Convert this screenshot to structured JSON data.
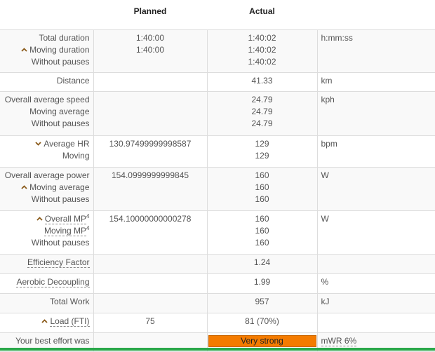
{
  "table": {
    "header": [
      "Planned",
      "Actual"
    ],
    "rows": [
      {
        "lines": [
          {
            "label": "Total duration",
            "planned": "1:40:00",
            "actual": "1:40:02"
          },
          {
            "label": "Moving duration",
            "planned": "1:40:00",
            "actual": "1:40:02"
          },
          {
            "label": "Without pauses",
            "actual": "1:40:02"
          }
        ],
        "unit": "h:mm:ss"
      },
      {
        "lines": [
          {
            "label": "Distance",
            "actual": "41.33"
          }
        ],
        "unit": "km"
      },
      {
        "lines": [
          {
            "label": "Overall average speed",
            "actual": "24.79"
          },
          {
            "label": "Moving average",
            "actual": "24.79"
          },
          {
            "label": "Without pauses",
            "actual": "24.79"
          }
        ],
        "unit": "kph"
      },
      {
        "lines": [
          {
            "label": "Average HR",
            "planned": "130.97499999998587",
            "actual": "129"
          },
          {
            "label": "Moving",
            "actual": "129"
          }
        ],
        "unit": "bpm"
      },
      {
        "lines": [
          {
            "label": "Overall average power",
            "planned": "154.0999999999845",
            "actual": "160"
          },
          {
            "label": "Moving average",
            "actual": "160"
          },
          {
            "label": "Without pauses",
            "actual": "160"
          }
        ],
        "unit": "W"
      },
      {
        "lines": [
          {
            "label": "Overall MP",
            "sup": "4",
            "planned": "154.10000000000278",
            "actual": "160"
          },
          {
            "label": "Moving MP",
            "sup": "4",
            "actual": "160"
          },
          {
            "label": "Without pauses",
            "actual": "160"
          }
        ],
        "unit": "W"
      },
      {
        "lines": [
          {
            "label": "Efficiency Factor",
            "actual": "1.24"
          }
        ]
      },
      {
        "lines": [
          {
            "label": "Aerobic Decoupling",
            "actual": "1.99"
          }
        ],
        "unit": "%"
      },
      {
        "lines": [
          {
            "label": "Total Work",
            "actual": "957"
          }
        ],
        "unit": "kJ"
      },
      {
        "lines": [
          {
            "label": "Load (FTI)",
            "planned": "75",
            "actual": "81 (70%)"
          }
        ]
      },
      {
        "lines": [
          {
            "label": "Your best effort was",
            "actual": "Very strong"
          }
        ],
        "unit": "mWR 6%"
      }
    ]
  }
}
